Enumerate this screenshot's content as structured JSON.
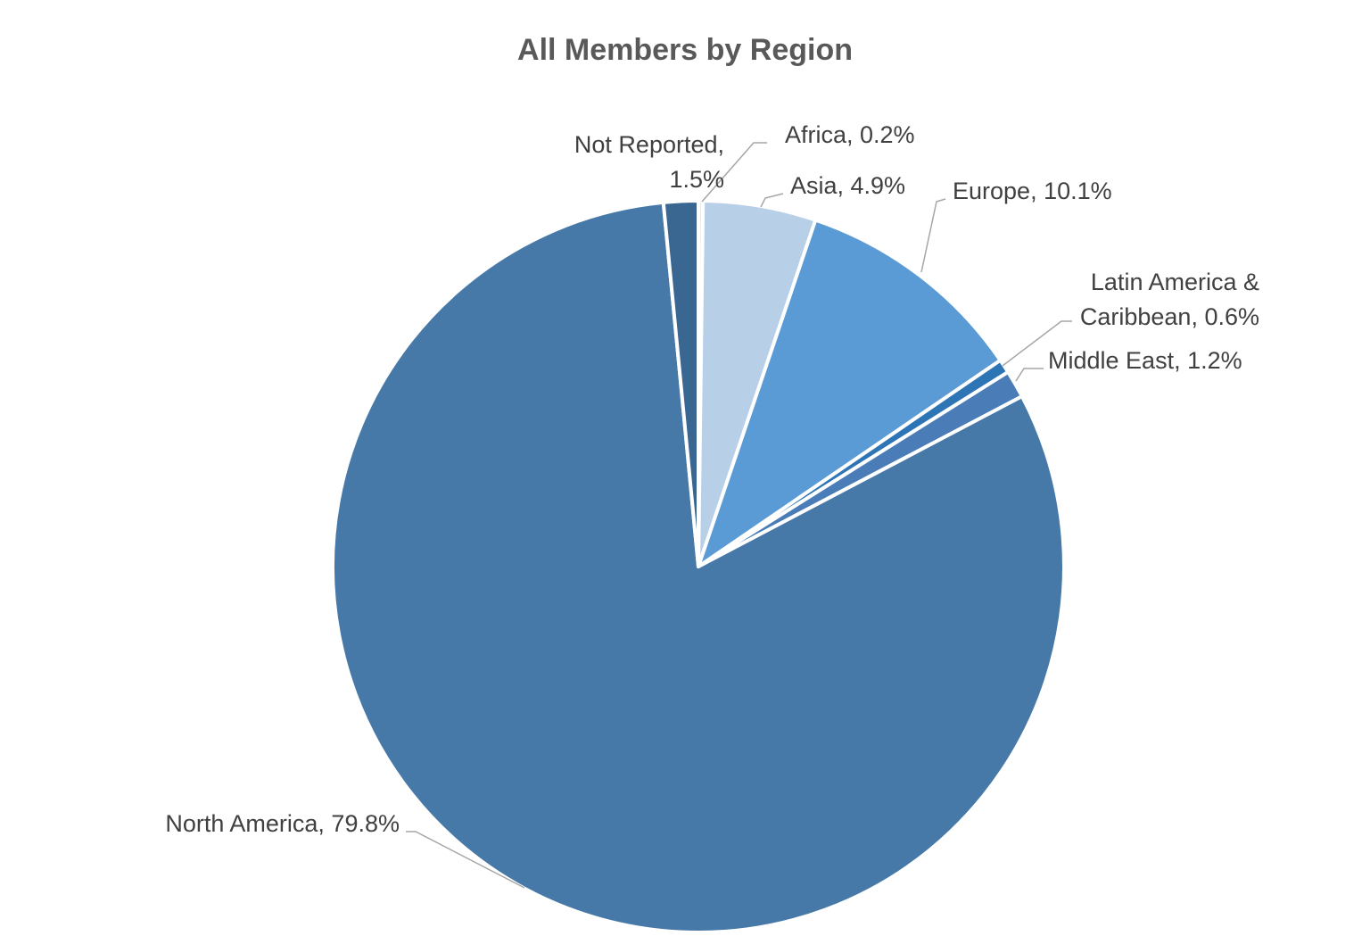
{
  "chart_data": {
    "type": "pie",
    "title": "All Members by Region",
    "unit": "%",
    "slices": [
      {
        "label": "Africa",
        "value": 0.2,
        "display": "Africa, 0.2%",
        "color": "#DEEBF7"
      },
      {
        "label": "Asia",
        "value": 4.9,
        "display": "Asia, 4.9%",
        "color": "#B8CFE8"
      },
      {
        "label": "Europe",
        "value": 10.1,
        "display": "Europe, 10.1%",
        "color": "#5B9BD5"
      },
      {
        "label": "Latin America & Caribbean",
        "value": 0.6,
        "display_lines": [
          "Latin America &",
          "Caribbean, 0.6%"
        ],
        "color": "#2E75B6"
      },
      {
        "label": "Middle East",
        "value": 1.2,
        "display": "Middle East, 1.2%",
        "color": "#4A7DB8"
      },
      {
        "label": "North America",
        "value": 79.8,
        "display": "North America, 79.8%",
        "color": "#4779A8"
      },
      {
        "label": "Not Reported",
        "value": 1.5,
        "display_lines": [
          "Not Reported,",
          "1.5%"
        ],
        "color": "#3A6692"
      }
    ],
    "start_angle_deg": 0,
    "direction": "clockwise",
    "slice_border_color": "#FFFFFF",
    "leader_line_color": "#A6A6A6",
    "title_color": "#595959",
    "label_color": "#404040",
    "legend": "none"
  }
}
